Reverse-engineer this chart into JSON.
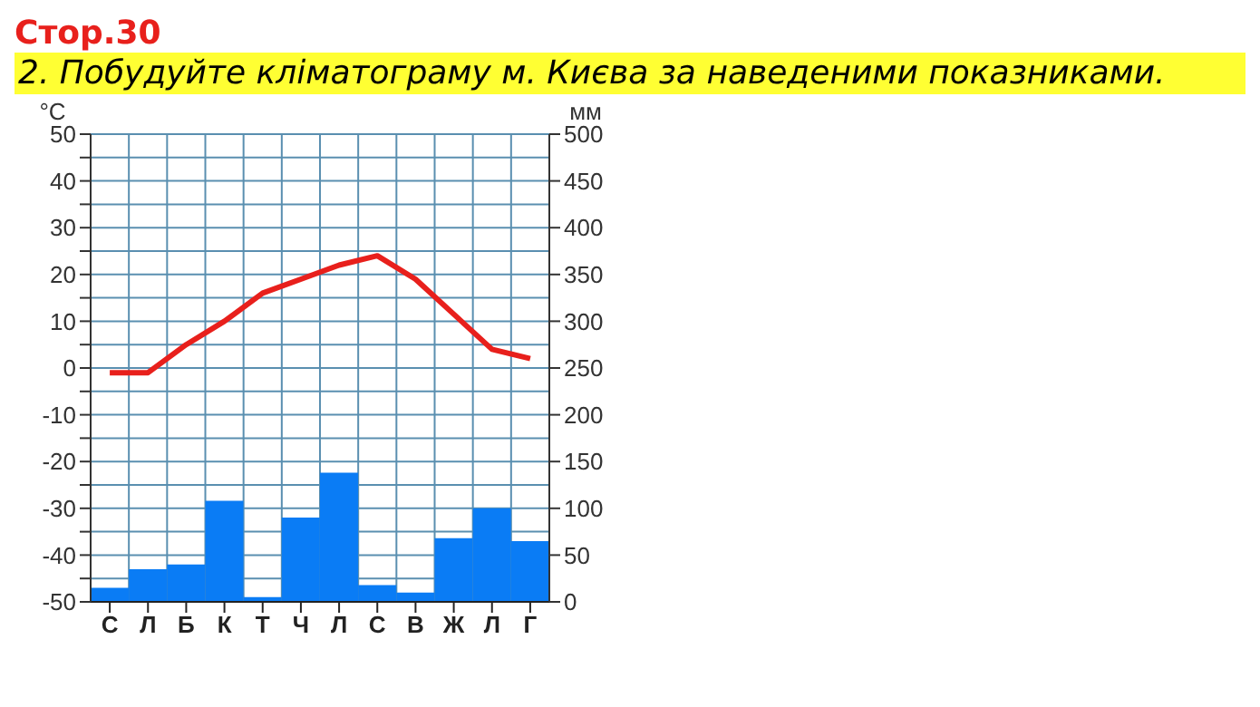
{
  "chart_data": {
    "type": "bar",
    "title": "Стор.30",
    "subtitle": "2. Побудуйте кліматограму м. Києва за наведеними показниками.",
    "ylabel": "°C",
    "y2label": "мм",
    "categories": [
      "С",
      "Л",
      "Б",
      "К",
      "Т",
      "Ч",
      "Л",
      "С",
      "В",
      "Ж",
      "Л",
      "Г"
    ],
    "series": [
      {
        "axis": "y2",
        "color": "#0a7cf5",
        "values": [
          15,
          35,
          40,
          108,
          5,
          90,
          138,
          18,
          10,
          68,
          100,
          65
        ]
      },
      {
        "type": "line",
        "axis": "y",
        "color": "#e8201c",
        "values": [
          -1,
          -1,
          5,
          10,
          16,
          19,
          22,
          24,
          19,
          11.5,
          4,
          2
        ]
      }
    ],
    "ylim": [
      -50,
      50
    ],
    "yticks": [
      -50,
      {
        "value": -45,
        "label": null
      },
      -40,
      {
        "value": -35,
        "label": null
      },
      -30,
      {
        "value": -25,
        "label": null
      },
      -20,
      {
        "value": -15,
        "label": null
      },
      -10,
      {
        "value": -5,
        "label": null
      },
      0,
      {
        "value": 5,
        "label": null
      },
      10,
      {
        "value": 15,
        "label": null
      },
      20,
      {
        "value": 25,
        "label": null
      },
      30,
      {
        "value": 35,
        "label": null
      },
      40,
      {
        "value": 45,
        "label": null
      },
      50
    ],
    "y2lim": [
      0,
      500
    ],
    "y2ticks": [
      0,
      50,
      100,
      150,
      200,
      250,
      300,
      350,
      400,
      450,
      500
    ],
    "grid": true,
    "marker": "none",
    "line_style": "solid"
  }
}
